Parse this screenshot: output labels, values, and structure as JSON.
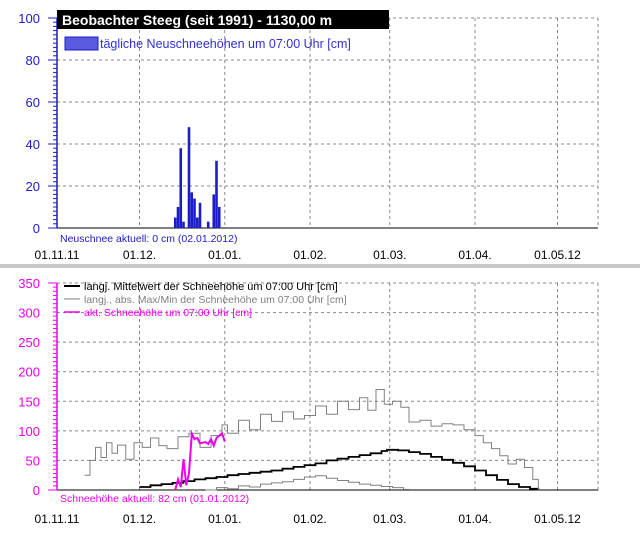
{
  "chart_data": [
    {
      "type": "bar",
      "title": "Beobachter Steeg (seit 1991) - 1130,00 m",
      "legend": {
        "label": "tägliche Neuschneehöhen um 07:00 Uhr [cm]",
        "color": "#3f3fd0",
        "placement": "top-left"
      },
      "footer": "Neuschnee aktuell: 0 cm (02.01.2012)",
      "ylim": [
        0,
        100
      ],
      "y_ticks": [
        "0",
        "20",
        "40",
        "60",
        "80",
        "100"
      ],
      "x_ticks": [
        "01.11.11",
        "01.12.",
        "01.01.",
        "01.02.",
        "01.03.",
        "01.04.",
        "01.05.12"
      ],
      "x_tick_days": [
        0,
        30,
        61,
        92,
        121,
        152,
        182
      ],
      "xlim_days": [
        0,
        212
      ],
      "grid": true,
      "bar_color": "#1c1cc8",
      "bars": [
        {
          "date": "2011-12-14",
          "value": 5
        },
        {
          "date": "2011-12-15",
          "value": 10
        },
        {
          "date": "2011-12-16",
          "value": 38
        },
        {
          "date": "2011-12-17",
          "value": 3
        },
        {
          "date": "2011-12-19",
          "value": 48
        },
        {
          "date": "2011-12-20",
          "value": 17
        },
        {
          "date": "2011-12-21",
          "value": 14
        },
        {
          "date": "2011-12-22",
          "value": 5
        },
        {
          "date": "2011-12-23",
          "value": 12
        },
        {
          "date": "2011-12-26",
          "value": 3
        },
        {
          "date": "2011-12-28",
          "value": 16
        },
        {
          "date": "2011-12-29",
          "value": 32
        },
        {
          "date": "2011-12-30",
          "value": 10
        }
      ]
    },
    {
      "type": "line",
      "footer": "Schneehöhe aktuell: 82 cm (01.01.2012)",
      "ylim": [
        0,
        350
      ],
      "y_ticks": [
        "0",
        "50",
        "100",
        "150",
        "200",
        "250",
        "300",
        "350"
      ],
      "x_ticks": [
        "01.11.11",
        "01.12.",
        "01.01.",
        "01.02.",
        "01.03.",
        "01.04.",
        "01.05.12"
      ],
      "x_tick_days": [
        0,
        30,
        61,
        92,
        121,
        152,
        182
      ],
      "xlim_days": [
        0,
        212
      ],
      "grid": true,
      "legend_placement": "top-left",
      "series": [
        {
          "name": "langj. Mittelwert der Schneehöhe um 07:00 Uhr [cm]",
          "color": "#000000",
          "points": [
            [
              30,
              5
            ],
            [
              34,
              8
            ],
            [
              38,
              10
            ],
            [
              42,
              12
            ],
            [
              46,
              15
            ],
            [
              50,
              18
            ],
            [
              54,
              20
            ],
            [
              58,
              22
            ],
            [
              62,
              25
            ],
            [
              66,
              27
            ],
            [
              70,
              29
            ],
            [
              74,
              31
            ],
            [
              78,
              33
            ],
            [
              82,
              36
            ],
            [
              86,
              39
            ],
            [
              90,
              42
            ],
            [
              94,
              45
            ],
            [
              98,
              50
            ],
            [
              102,
              53
            ],
            [
              106,
              56
            ],
            [
              110,
              59
            ],
            [
              114,
              62
            ],
            [
              118,
              66
            ],
            [
              120,
              68
            ],
            [
              124,
              67
            ],
            [
              128,
              64
            ],
            [
              132,
              61
            ],
            [
              136,
              56
            ],
            [
              140,
              51
            ],
            [
              144,
              46
            ],
            [
              148,
              40
            ],
            [
              152,
              33
            ],
            [
              156,
              25
            ],
            [
              160,
              17
            ],
            [
              164,
              10
            ],
            [
              168,
              5
            ],
            [
              172,
              2
            ],
            [
              175,
              0
            ]
          ]
        },
        {
          "name": "langj., abs. Max/Min der Schneehöhe um 07:00 Uhr [cm]",
          "color": "#808080",
          "points": [
            [
              10,
              25
            ],
            [
              12,
              50
            ],
            [
              14,
              72
            ],
            [
              16,
              55
            ],
            [
              18,
              80
            ],
            [
              20,
              62
            ],
            [
              22,
              76
            ],
            [
              25,
              52
            ],
            [
              28,
              80
            ],
            [
              31,
              72
            ],
            [
              34,
              88
            ],
            [
              37,
              75
            ],
            [
              40,
              70
            ],
            [
              44,
              90
            ],
            [
              48,
              96
            ],
            [
              52,
              72
            ],
            [
              56,
              92
            ],
            [
              60,
              110
            ],
            [
              62,
              96
            ],
            [
              66,
              118
            ],
            [
              70,
              102
            ],
            [
              74,
              128
            ],
            [
              78,
              116
            ],
            [
              82,
              132
            ],
            [
              86,
              120
            ],
            [
              90,
              126
            ],
            [
              94,
              142
            ],
            [
              98,
              128
            ],
            [
              102,
              150
            ],
            [
              106,
              136
            ],
            [
              110,
              156
            ],
            [
              113,
              135
            ],
            [
              116,
              170
            ],
            [
              119,
              145
            ],
            [
              122,
              150
            ],
            [
              125,
              140
            ],
            [
              128,
              115
            ],
            [
              132,
              118
            ],
            [
              136,
              108
            ],
            [
              140,
              112
            ],
            [
              144,
              110
            ],
            [
              148,
              102
            ],
            [
              152,
              92
            ],
            [
              155,
              80
            ],
            [
              158,
              70
            ],
            [
              161,
              58
            ],
            [
              164,
              44
            ],
            [
              167,
              52
            ],
            [
              170,
              38
            ],
            [
              173,
              18
            ],
            [
              175,
              0
            ]
          ]
        },
        {
          "name": "langj., abs. Max/Min der Schneehöhe um 07:00 Uhr [cm] (Min)",
          "color": "#808080",
          "points": [
            [
              54,
              0
            ],
            [
              58,
              4
            ],
            [
              62,
              2
            ],
            [
              66,
              7
            ],
            [
              70,
              5
            ],
            [
              74,
              10
            ],
            [
              78,
              12
            ],
            [
              82,
              14
            ],
            [
              86,
              18
            ],
            [
              90,
              22
            ],
            [
              94,
              24
            ],
            [
              98,
              20
            ],
            [
              102,
              16
            ],
            [
              106,
              13
            ],
            [
              110,
              10
            ],
            [
              114,
              8
            ],
            [
              118,
              6
            ],
            [
              122,
              4
            ],
            [
              126,
              1
            ],
            [
              128,
              0
            ]
          ]
        },
        {
          "name": "akt. Schneehöhe um 07:00 Uhr [cm]",
          "color": "#ee00ee",
          "points": [
            [
              43,
              0
            ],
            [
              44,
              18
            ],
            [
              45,
              5
            ],
            [
              46,
              52
            ],
            [
              47,
              8
            ],
            [
              48,
              28
            ],
            [
              49,
              95
            ],
            [
              50,
              86
            ],
            [
              51,
              88
            ],
            [
              52,
              79
            ],
            [
              53,
              80
            ],
            [
              54,
              81
            ],
            [
              55,
              78
            ],
            [
              56,
              86
            ],
            [
              57,
              75
            ],
            [
              58,
              88
            ],
            [
              59,
              92
            ],
            [
              60,
              96
            ],
            [
              61,
              82
            ]
          ]
        }
      ]
    }
  ]
}
